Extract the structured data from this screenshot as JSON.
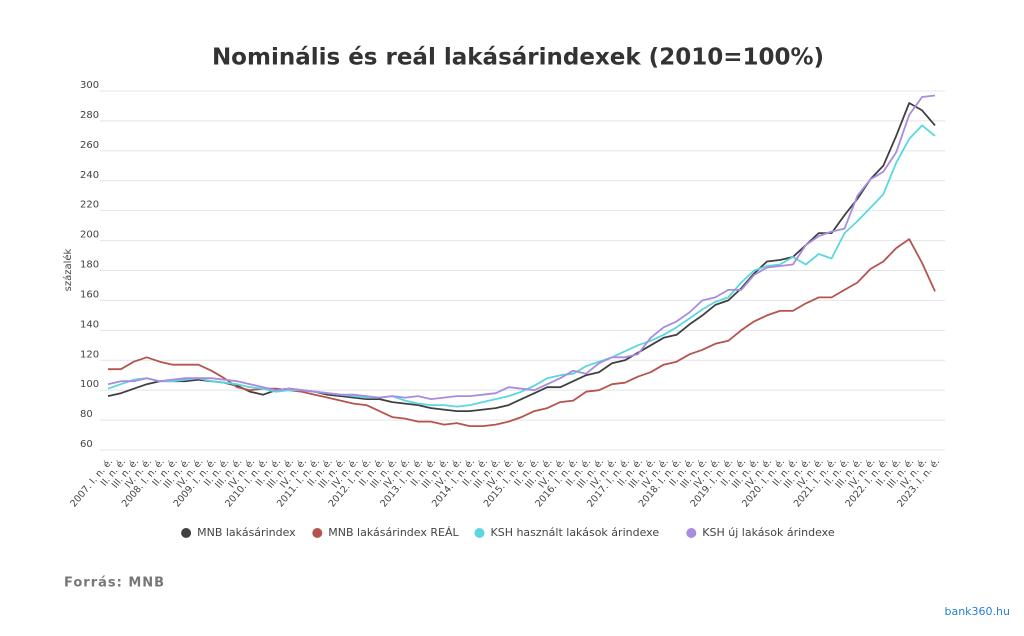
{
  "chart_data": {
    "type": "line",
    "title": "Nominális és reál lakásárindexek (2010=100%)",
    "ylabel": "százalék",
    "source": "Forrás: MNB",
    "watermark": "bank360.hu",
    "categories": [
      "2007. I. n. é.",
      "II. n. é.",
      "III. n. é.",
      "IV. n. é.",
      "2008. I. n. é.",
      "II. n. é.",
      "III. n. é.",
      "IV. n. é.",
      "2009. I. n. é.",
      "II. n. é.",
      "III. n. é.",
      "IV. n. é.",
      "2010. I. n. é.",
      "II. n. é.",
      "III. n. é.",
      "IV. n. é.",
      "2011. I. n. é.",
      "II. n. é.",
      "III. n. é.",
      "IV. n. é.",
      "2012. I. n. é.",
      "II. n. é.",
      "III. n. é.",
      "IV. n. é.",
      "2013. I. n. é.",
      "II. n. é.",
      "III. n. é.",
      "IV. n. é.",
      "2014. I. n. é.",
      "II. n. é.",
      "III. n. é.",
      "IV. n. é.",
      "2015. I. n. é.",
      "II. n. é.",
      "III. n. é.",
      "IV. n. é.",
      "2016. I. n. é.",
      "II. n. é.",
      "III. n. é.",
      "IV. n. é.",
      "2017. I. n. é.",
      "II. n. é.",
      "III. n. é.",
      "IV. n. é.",
      "2018. I. n. é.",
      "II. n. é.",
      "III. n. é.",
      "IV. n. é.",
      "2019. I. n. é.",
      "II. n. é.",
      "III. n. é.",
      "IV. n. é.",
      "2020. I. n. é.",
      "II. n. é.",
      "III. n. é.",
      "IV. n. é.",
      "2021. I. n. é.",
      "II. n. é.",
      "III. n. é.",
      "IV. n. é.",
      "2022. I. n. é.",
      "II. n. é.",
      "III. n. é.",
      "IV. n. é.",
      "2023. I. n. é."
    ],
    "series": [
      {
        "name": "MNB lakásárindex",
        "color": "#404040",
        "values": [
          96,
          98,
          101,
          104,
          106,
          106,
          106,
          107,
          106,
          105,
          103,
          99,
          97,
          100,
          101,
          100,
          99,
          97,
          96,
          95,
          94,
          94,
          92,
          91,
          90,
          88,
          87,
          86,
          86,
          87,
          88,
          90,
          94,
          98,
          102,
          102,
          106,
          110,
          112,
          118,
          120,
          125,
          130,
          135,
          137,
          144,
          150,
          157,
          160,
          168,
          178,
          186,
          187,
          189,
          197,
          205,
          205,
          217,
          228,
          241,
          250,
          270,
          292,
          287,
          277
        ]
      },
      {
        "name": "MNB lakásárindex REÁL",
        "color": "#b5544f",
        "values": [
          114,
          114,
          119,
          122,
          119,
          117,
          117,
          117,
          113,
          108,
          102,
          100,
          101,
          101,
          100,
          99,
          97,
          95,
          93,
          91,
          90,
          86,
          82,
          81,
          79,
          79,
          77,
          78,
          76,
          76,
          77,
          79,
          82,
          86,
          88,
          92,
          93,
          99,
          100,
          104,
          105,
          109,
          112,
          117,
          119,
          124,
          127,
          131,
          133,
          140,
          146,
          150,
          153,
          153,
          158,
          162,
          162,
          167,
          172,
          181,
          186,
          195,
          201,
          185,
          166
        ]
      },
      {
        "name": "KSH használt lakások árindexe",
        "color": "#5ad7e0",
        "values": [
          101,
          104,
          107,
          108,
          106,
          106,
          107,
          108,
          106,
          105,
          104,
          102,
          101,
          99,
          100,
          100,
          99,
          98,
          97,
          96,
          95,
          95,
          96,
          93,
          91,
          90,
          90,
          89,
          90,
          92,
          94,
          96,
          99,
          103,
          108,
          110,
          111,
          116,
          119,
          122,
          126,
          130,
          133,
          137,
          142,
          148,
          154,
          159,
          162,
          172,
          180,
          183,
          184,
          189,
          184,
          191,
          188,
          205,
          213,
          222,
          231,
          252,
          268,
          277,
          270
        ]
      },
      {
        "name": "KSH új lakások árindexe",
        "color": "#a98be0",
        "values": [
          104,
          106,
          106,
          108,
          106,
          107,
          108,
          108,
          108,
          107,
          106,
          104,
          102,
          100,
          101,
          100,
          99,
          98,
          97,
          97,
          96,
          95,
          96,
          95,
          96,
          94,
          95,
          96,
          96,
          97,
          98,
          102,
          101,
          100,
          104,
          108,
          113,
          111,
          118,
          122,
          122,
          124,
          135,
          142,
          146,
          152,
          160,
          162,
          167,
          167,
          177,
          182,
          183,
          184,
          197,
          203,
          206,
          208,
          230,
          241,
          246,
          259,
          284,
          296,
          297
        ]
      }
    ],
    "ylim": [
      60,
      300
    ],
    "yticks": [
      60,
      80,
      100,
      120,
      140,
      160,
      180,
      200,
      220,
      240,
      260,
      280,
      300
    ],
    "grid": true,
    "legend": "bottom"
  }
}
